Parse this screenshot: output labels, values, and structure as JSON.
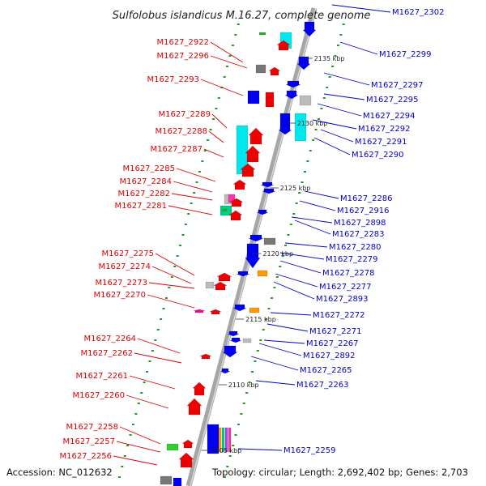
{
  "title": "Sulfolobus islandicus M.16.27, complete genome",
  "footer": {
    "accession": "Accession: NC_012632",
    "topology": "Topology: circular; Length: 2,692,402 bp; Genes: 2,703"
  },
  "colors": {
    "backbone": "#a6a6a6",
    "left_labels": "#dd0000",
    "right_labels": "#0000cc",
    "tick_marks": "#229922"
  },
  "ticks": [
    "2135 kbp",
    "2130 kbp",
    "2125 kbp",
    "2120 kbp",
    "2115 kbp",
    "2110 kbp",
    "2105 kbp"
  ],
  "left_genes": [
    "M1627_2922",
    "M1627_2296",
    "M1627_2293",
    "M1627_2289",
    "M1627_2288",
    "M1627_2287",
    "M1627_2285",
    "M1627_2284",
    "M1627_2282",
    "M1627_2281",
    "M1627_2275",
    "M1627_2274",
    "M1627_2273",
    "M1627_2270",
    "M1627_2264",
    "M1627_2262",
    "M1627_2261",
    "M1627_2260",
    "M1627_2258",
    "M1627_2257",
    "M1627_2256"
  ],
  "right_genes": [
    "M1627_2302",
    "M1627_2299",
    "M1627_2297",
    "M1627_2295",
    "M1627_2294",
    "M1627_2292",
    "M1627_2291",
    "M1627_2290",
    "M1627_2286",
    "M1627_2916",
    "M1627_2898",
    "M1627_2283",
    "M1627_2280",
    "M1627_2279",
    "M1627_2278",
    "M1627_2277",
    "M1627_2893",
    "M1627_2272",
    "M1627_2271",
    "M1627_2267",
    "M1627_2892",
    "M1627_2265",
    "M1627_2263",
    "M1627_2259"
  ]
}
